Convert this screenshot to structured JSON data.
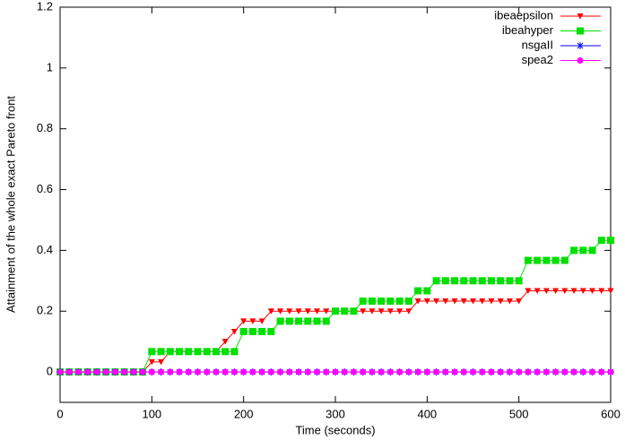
{
  "chart_data": {
    "type": "line",
    "xlabel": "Time (seconds)",
    "ylabel": "Attainment of the whole exact Pareto front",
    "xlim": [
      0,
      600
    ],
    "xticks": [
      0,
      100,
      200,
      300,
      400,
      500,
      600
    ],
    "ylim": [
      -0.1,
      1.2
    ],
    "yticks": [
      0,
      0.2,
      0.4,
      0.6,
      0.8,
      1,
      1.2
    ],
    "legend": "top-right",
    "x": [
      0,
      10,
      20,
      30,
      40,
      50,
      60,
      70,
      80,
      90,
      100,
      110,
      120,
      130,
      140,
      150,
      160,
      170,
      180,
      190,
      200,
      210,
      220,
      230,
      240,
      250,
      260,
      270,
      280,
      290,
      300,
      310,
      320,
      330,
      340,
      350,
      360,
      370,
      380,
      390,
      400,
      410,
      420,
      430,
      440,
      450,
      460,
      470,
      480,
      490,
      500,
      510,
      520,
      530,
      540,
      550,
      560,
      570,
      580,
      590,
      600
    ],
    "series": [
      {
        "name": "ibeaepsilon",
        "color": "#ff0000",
        "marker": "triangle-down",
        "values": [
          0,
          0,
          0,
          0,
          0,
          0,
          0,
          0,
          0,
          0,
          0.033,
          0.033,
          0.067,
          0.067,
          0.067,
          0.067,
          0.067,
          0.067,
          0.1,
          0.133,
          0.167,
          0.167,
          0.167,
          0.2,
          0.2,
          0.2,
          0.2,
          0.2,
          0.2,
          0.2,
          0.2,
          0.2,
          0.2,
          0.2,
          0.2,
          0.2,
          0.2,
          0.2,
          0.2,
          0.233,
          0.233,
          0.233,
          0.233,
          0.233,
          0.233,
          0.233,
          0.233,
          0.233,
          0.233,
          0.233,
          0.233,
          0.267,
          0.267,
          0.267,
          0.267,
          0.267,
          0.267,
          0.267,
          0.267,
          0.267,
          0.267
        ]
      },
      {
        "name": "ibeahyper",
        "color": "#00e000",
        "marker": "square",
        "values": [
          0,
          0,
          0,
          0,
          0,
          0,
          0,
          0,
          0,
          0,
          0.067,
          0.067,
          0.067,
          0.067,
          0.067,
          0.067,
          0.067,
          0.067,
          0.067,
          0.067,
          0.133,
          0.133,
          0.133,
          0.133,
          0.167,
          0.167,
          0.167,
          0.167,
          0.167,
          0.167,
          0.2,
          0.2,
          0.2,
          0.233,
          0.233,
          0.233,
          0.233,
          0.233,
          0.233,
          0.267,
          0.267,
          0.3,
          0.3,
          0.3,
          0.3,
          0.3,
          0.3,
          0.3,
          0.3,
          0.3,
          0.3,
          0.367,
          0.367,
          0.367,
          0.367,
          0.367,
          0.4,
          0.4,
          0.4,
          0.433,
          0.433
        ]
      },
      {
        "name": "nsgaII",
        "color": "#0000ff",
        "marker": "star",
        "values": [
          0,
          0,
          0,
          0,
          0,
          0,
          0,
          0,
          0,
          0,
          0,
          0,
          0,
          0,
          0,
          0,
          0,
          0,
          0,
          0,
          0,
          0,
          0,
          0,
          0,
          0,
          0,
          0,
          0,
          0,
          0,
          0,
          0,
          0,
          0,
          0,
          0,
          0,
          0,
          0,
          0,
          0,
          0,
          0,
          0,
          0,
          0,
          0,
          0,
          0,
          0,
          0,
          0,
          0,
          0,
          0,
          0,
          0,
          0,
          0,
          0
        ]
      },
      {
        "name": "spea2",
        "color": "#ff00ff",
        "marker": "circle",
        "values": [
          0,
          0,
          0,
          0,
          0,
          0,
          0,
          0,
          0,
          0,
          0,
          0,
          0,
          0,
          0,
          0,
          0,
          0,
          0,
          0,
          0,
          0,
          0,
          0,
          0,
          0,
          0,
          0,
          0,
          0,
          0,
          0,
          0,
          0,
          0,
          0,
          0,
          0,
          0,
          0,
          0,
          0,
          0,
          0,
          0,
          0,
          0,
          0,
          0,
          0,
          0,
          0,
          0,
          0,
          0,
          0,
          0,
          0,
          0,
          0,
          0
        ]
      }
    ]
  }
}
